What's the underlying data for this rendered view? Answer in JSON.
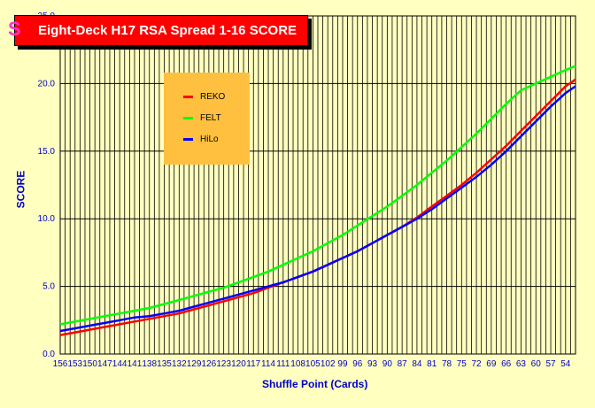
{
  "chart_data": {
    "type": "line",
    "title": "Eight-Deck H17 RSA Spread 1-16 SCORE",
    "xlabel": "Shuffle Point (Cards)",
    "ylabel": "SCORE",
    "x_tick_labels": [
      "156",
      "153",
      "150",
      "147",
      "144",
      "141",
      "138",
      "135",
      "132",
      "129",
      "126",
      "123",
      "120",
      "117",
      "114",
      "111",
      "108",
      "105",
      "102",
      "99",
      "96",
      "93",
      "90",
      "87",
      "84",
      "81",
      "78",
      "75",
      "72",
      "69",
      "66",
      "63",
      "60",
      "57",
      "54"
    ],
    "x": [
      156,
      153,
      150,
      147,
      144,
      141,
      138,
      135,
      132,
      129,
      126,
      123,
      120,
      117,
      114,
      111,
      108,
      105,
      102,
      99,
      96,
      93,
      90,
      87,
      84,
      81,
      78,
      75,
      72,
      69,
      66,
      63,
      60,
      57,
      54,
      52
    ],
    "xlim": [
      156,
      52
    ],
    "y_ticks": [
      "0.0",
      "5.0",
      "10.0",
      "15.0",
      "20.0",
      "25.0"
    ],
    "ylim": [
      0,
      25
    ],
    "grid": true,
    "legend_position": "top-left inside",
    "series": [
      {
        "name": "REKO",
        "color": "#FF0000",
        "values": [
          1.4,
          1.6,
          1.8,
          2.0,
          2.2,
          2.4,
          2.6,
          2.8,
          3.0,
          3.3,
          3.6,
          3.9,
          4.2,
          4.5,
          4.9,
          5.3,
          5.7,
          6.1,
          6.6,
          7.1,
          7.6,
          8.2,
          8.8,
          9.4,
          10.1,
          10.9,
          11.7,
          12.5,
          13.4,
          14.4,
          15.4,
          16.5,
          17.6,
          18.7,
          19.8,
          20.3
        ]
      },
      {
        "name": "FELT",
        "color": "#00FF00",
        "values": [
          2.2,
          2.4,
          2.6,
          2.8,
          3.0,
          3.2,
          3.4,
          3.7,
          4.0,
          4.3,
          4.6,
          4.9,
          5.3,
          5.7,
          6.1,
          6.6,
          7.1,
          7.6,
          8.2,
          8.8,
          9.5,
          10.2,
          10.9,
          11.7,
          12.5,
          13.4,
          14.3,
          15.3,
          16.3,
          17.4,
          18.5,
          19.5,
          20.0,
          20.5,
          21.0,
          21.3
        ]
      },
      {
        "name": "HiLo",
        "color": "#0000FF",
        "values": [
          1.7,
          1.9,
          2.1,
          2.3,
          2.5,
          2.7,
          2.8,
          3.0,
          3.2,
          3.5,
          3.8,
          4.1,
          4.4,
          4.7,
          5.0,
          5.3,
          5.7,
          6.1,
          6.6,
          7.1,
          7.6,
          8.2,
          8.8,
          9.4,
          10.0,
          10.7,
          11.5,
          12.3,
          13.1,
          14.0,
          15.0,
          16.1,
          17.2,
          18.3,
          19.3,
          19.8
        ]
      }
    ]
  }
}
